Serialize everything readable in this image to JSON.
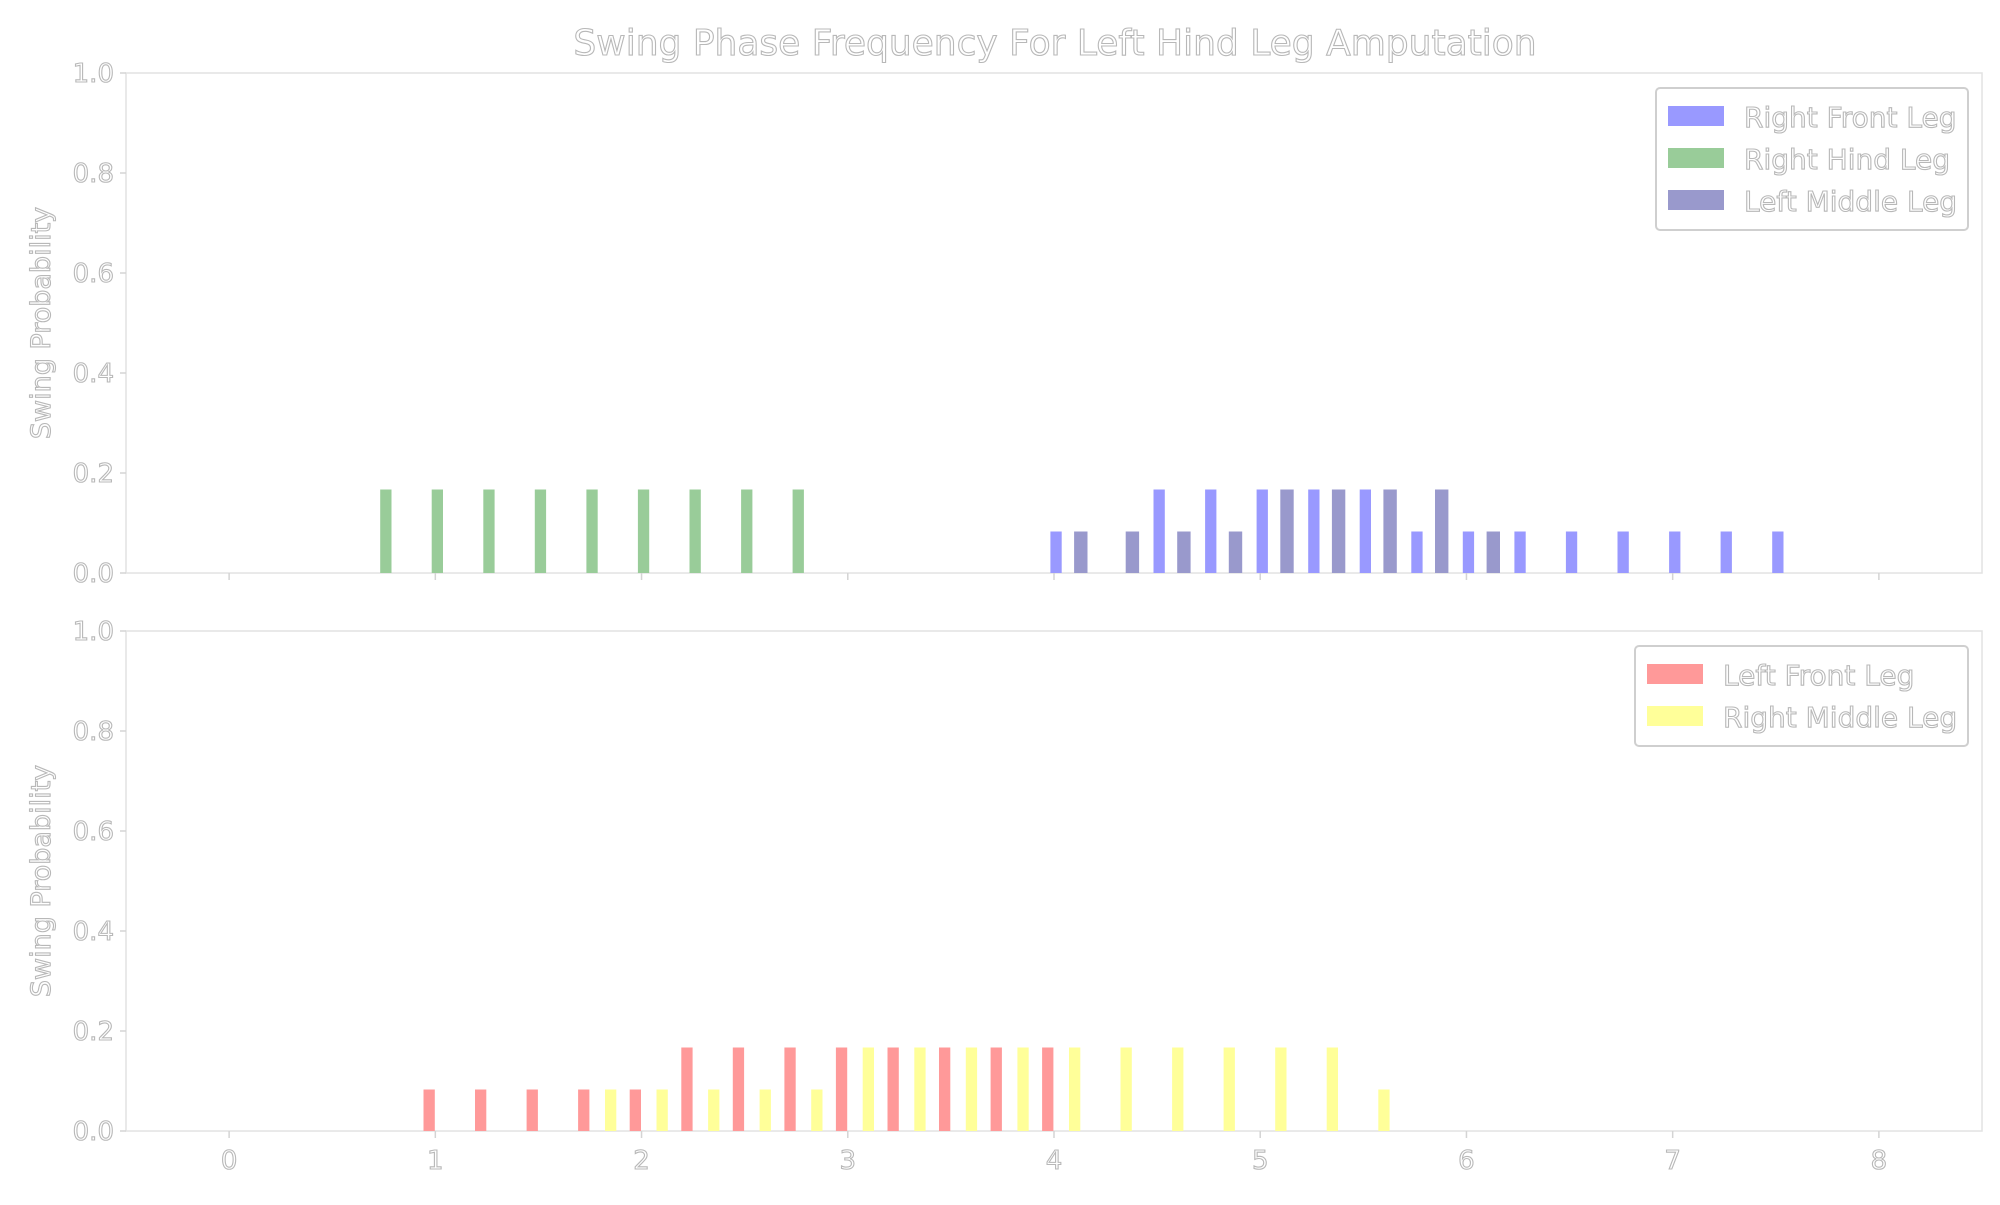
{
  "chart_data": {
    "type": "bar",
    "title": "Swing Phase Frequency For Left Hind Leg Amputation",
    "xticks": [
      "0",
      "1",
      "2",
      "3",
      "4",
      "5",
      "6",
      "7",
      "8"
    ],
    "xlim": [
      -0.5,
      8.5
    ],
    "yticks": [
      "0.0",
      "0.2",
      "0.4",
      "0.6",
      "0.8",
      "1.0"
    ],
    "colors": {
      "right_front": "#9999ff",
      "right_hind": "#99cc99",
      "left_middle": "#9999cc",
      "left_front": "#ff9999",
      "right_middle": "#ffff99"
    },
    "panels": [
      {
        "ylabel": "Swing Probability",
        "ylim": [
          0,
          1.0
        ],
        "legend_position": "top-right",
        "series": [
          {
            "name": "Right Front Leg",
            "color": "#9999ff",
            "bar_width": 0.055,
            "x": [
              4.01,
              4.51,
              4.76,
              5.01,
              5.26,
              5.51,
              5.76,
              6.01,
              6.26,
              6.51,
              6.76,
              7.01,
              7.26,
              7.51
            ],
            "values": [
              0.083,
              0.167,
              0.167,
              0.167,
              0.167,
              0.167,
              0.083,
              0.083,
              0.083,
              0.083,
              0.083,
              0.083,
              0.083,
              0.083
            ]
          },
          {
            "name": "Right Hind Leg",
            "color": "#99cc99",
            "bar_width": 0.055,
            "x": [
              0.76,
              1.01,
              1.26,
              1.51,
              1.76,
              2.01,
              2.26,
              2.51,
              2.76
            ],
            "values": [
              0.167,
              0.167,
              0.167,
              0.167,
              0.167,
              0.167,
              0.167,
              0.167,
              0.167
            ]
          },
          {
            "name": "Left Middle Leg",
            "color": "#9999cc",
            "bar_width": 0.065,
            "x": [
              4.13,
              4.38,
              4.63,
              4.88,
              5.13,
              5.38,
              5.63,
              5.88,
              6.13
            ],
            "values": [
              0.083,
              0.083,
              0.083,
              0.083,
              0.167,
              0.167,
              0.167,
              0.167,
              0.083
            ]
          }
        ]
      },
      {
        "ylabel": "Swing Probability",
        "ylim": [
          0,
          1.0
        ],
        "legend_position": "top-right",
        "series": [
          {
            "name": "Left Front Leg",
            "color": "#ff9999",
            "bar_width": 0.055,
            "x": [
              0.97,
              1.22,
              1.47,
              1.72,
              1.97,
              2.22,
              2.47,
              2.72,
              2.97,
              3.22,
              3.47,
              3.72,
              3.97
            ],
            "values": [
              0.083,
              0.083,
              0.083,
              0.083,
              0.083,
              0.167,
              0.167,
              0.167,
              0.167,
              0.167,
              0.167,
              0.167,
              0.167
            ]
          },
          {
            "name": "Right Middle Leg",
            "color": "#ffff99",
            "bar_width": 0.055,
            "x": [
              1.85,
              2.1,
              2.35,
              2.6,
              2.85,
              3.1,
              3.35,
              3.6,
              3.85,
              4.1,
              4.35,
              4.6,
              4.85,
              5.1,
              5.35,
              5.6
            ],
            "values": [
              0.083,
              0.083,
              0.083,
              0.083,
              0.083,
              0.167,
              0.167,
              0.167,
              0.167,
              0.167,
              0.167,
              0.167,
              0.167,
              0.167,
              0.167,
              0.083
            ]
          }
        ]
      }
    ]
  }
}
